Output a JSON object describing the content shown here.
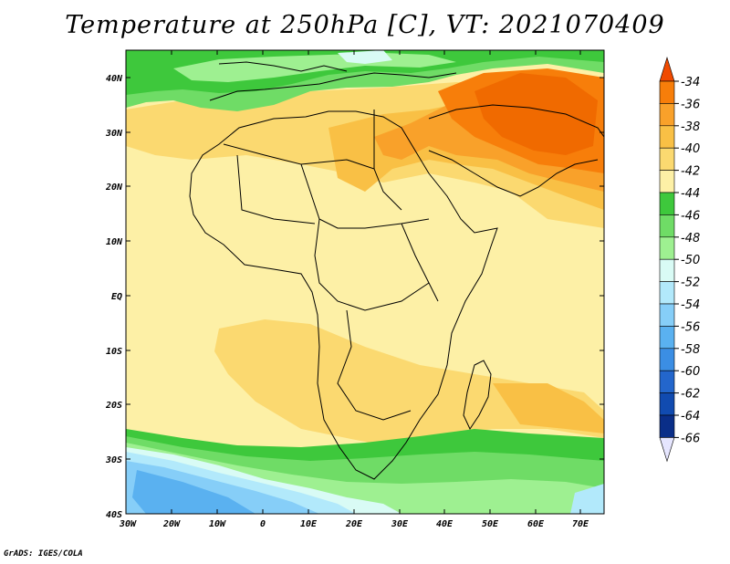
{
  "title": "Temperature at 250hPa [C], VT: 2021070409",
  "credit": "GrADS: IGES/COLA",
  "map": {
    "lat_labels": [
      "40N",
      "30N",
      "20N",
      "10N",
      "EQ",
      "10S",
      "20S",
      "30S",
      "40S"
    ],
    "lon_labels": [
      "30W",
      "20W",
      "10W",
      "0",
      "10E",
      "20E",
      "30E",
      "40E",
      "50E",
      "60E",
      "70E"
    ]
  },
  "colorbar": {
    "labels": [
      "-34",
      "-36",
      "-38",
      "-40",
      "-42",
      "-44",
      "-46",
      "-48",
      "-50",
      "-52",
      "-54",
      "-56",
      "-58",
      "-60",
      "-62",
      "-64",
      "-66"
    ],
    "colors": [
      "#f04a00",
      "#f77e0a",
      "#f9a12a",
      "#f9c045",
      "#fbd970",
      "#fdf0a6",
      "#3ec83c",
      "#6fdc66",
      "#9ef091",
      "#d9fbf5",
      "#b2e9fb",
      "#86cef8",
      "#5ab1f0",
      "#3b8ee4",
      "#2366cc",
      "#114bb0",
      "#0a2e88",
      "#00105e"
    ]
  }
}
